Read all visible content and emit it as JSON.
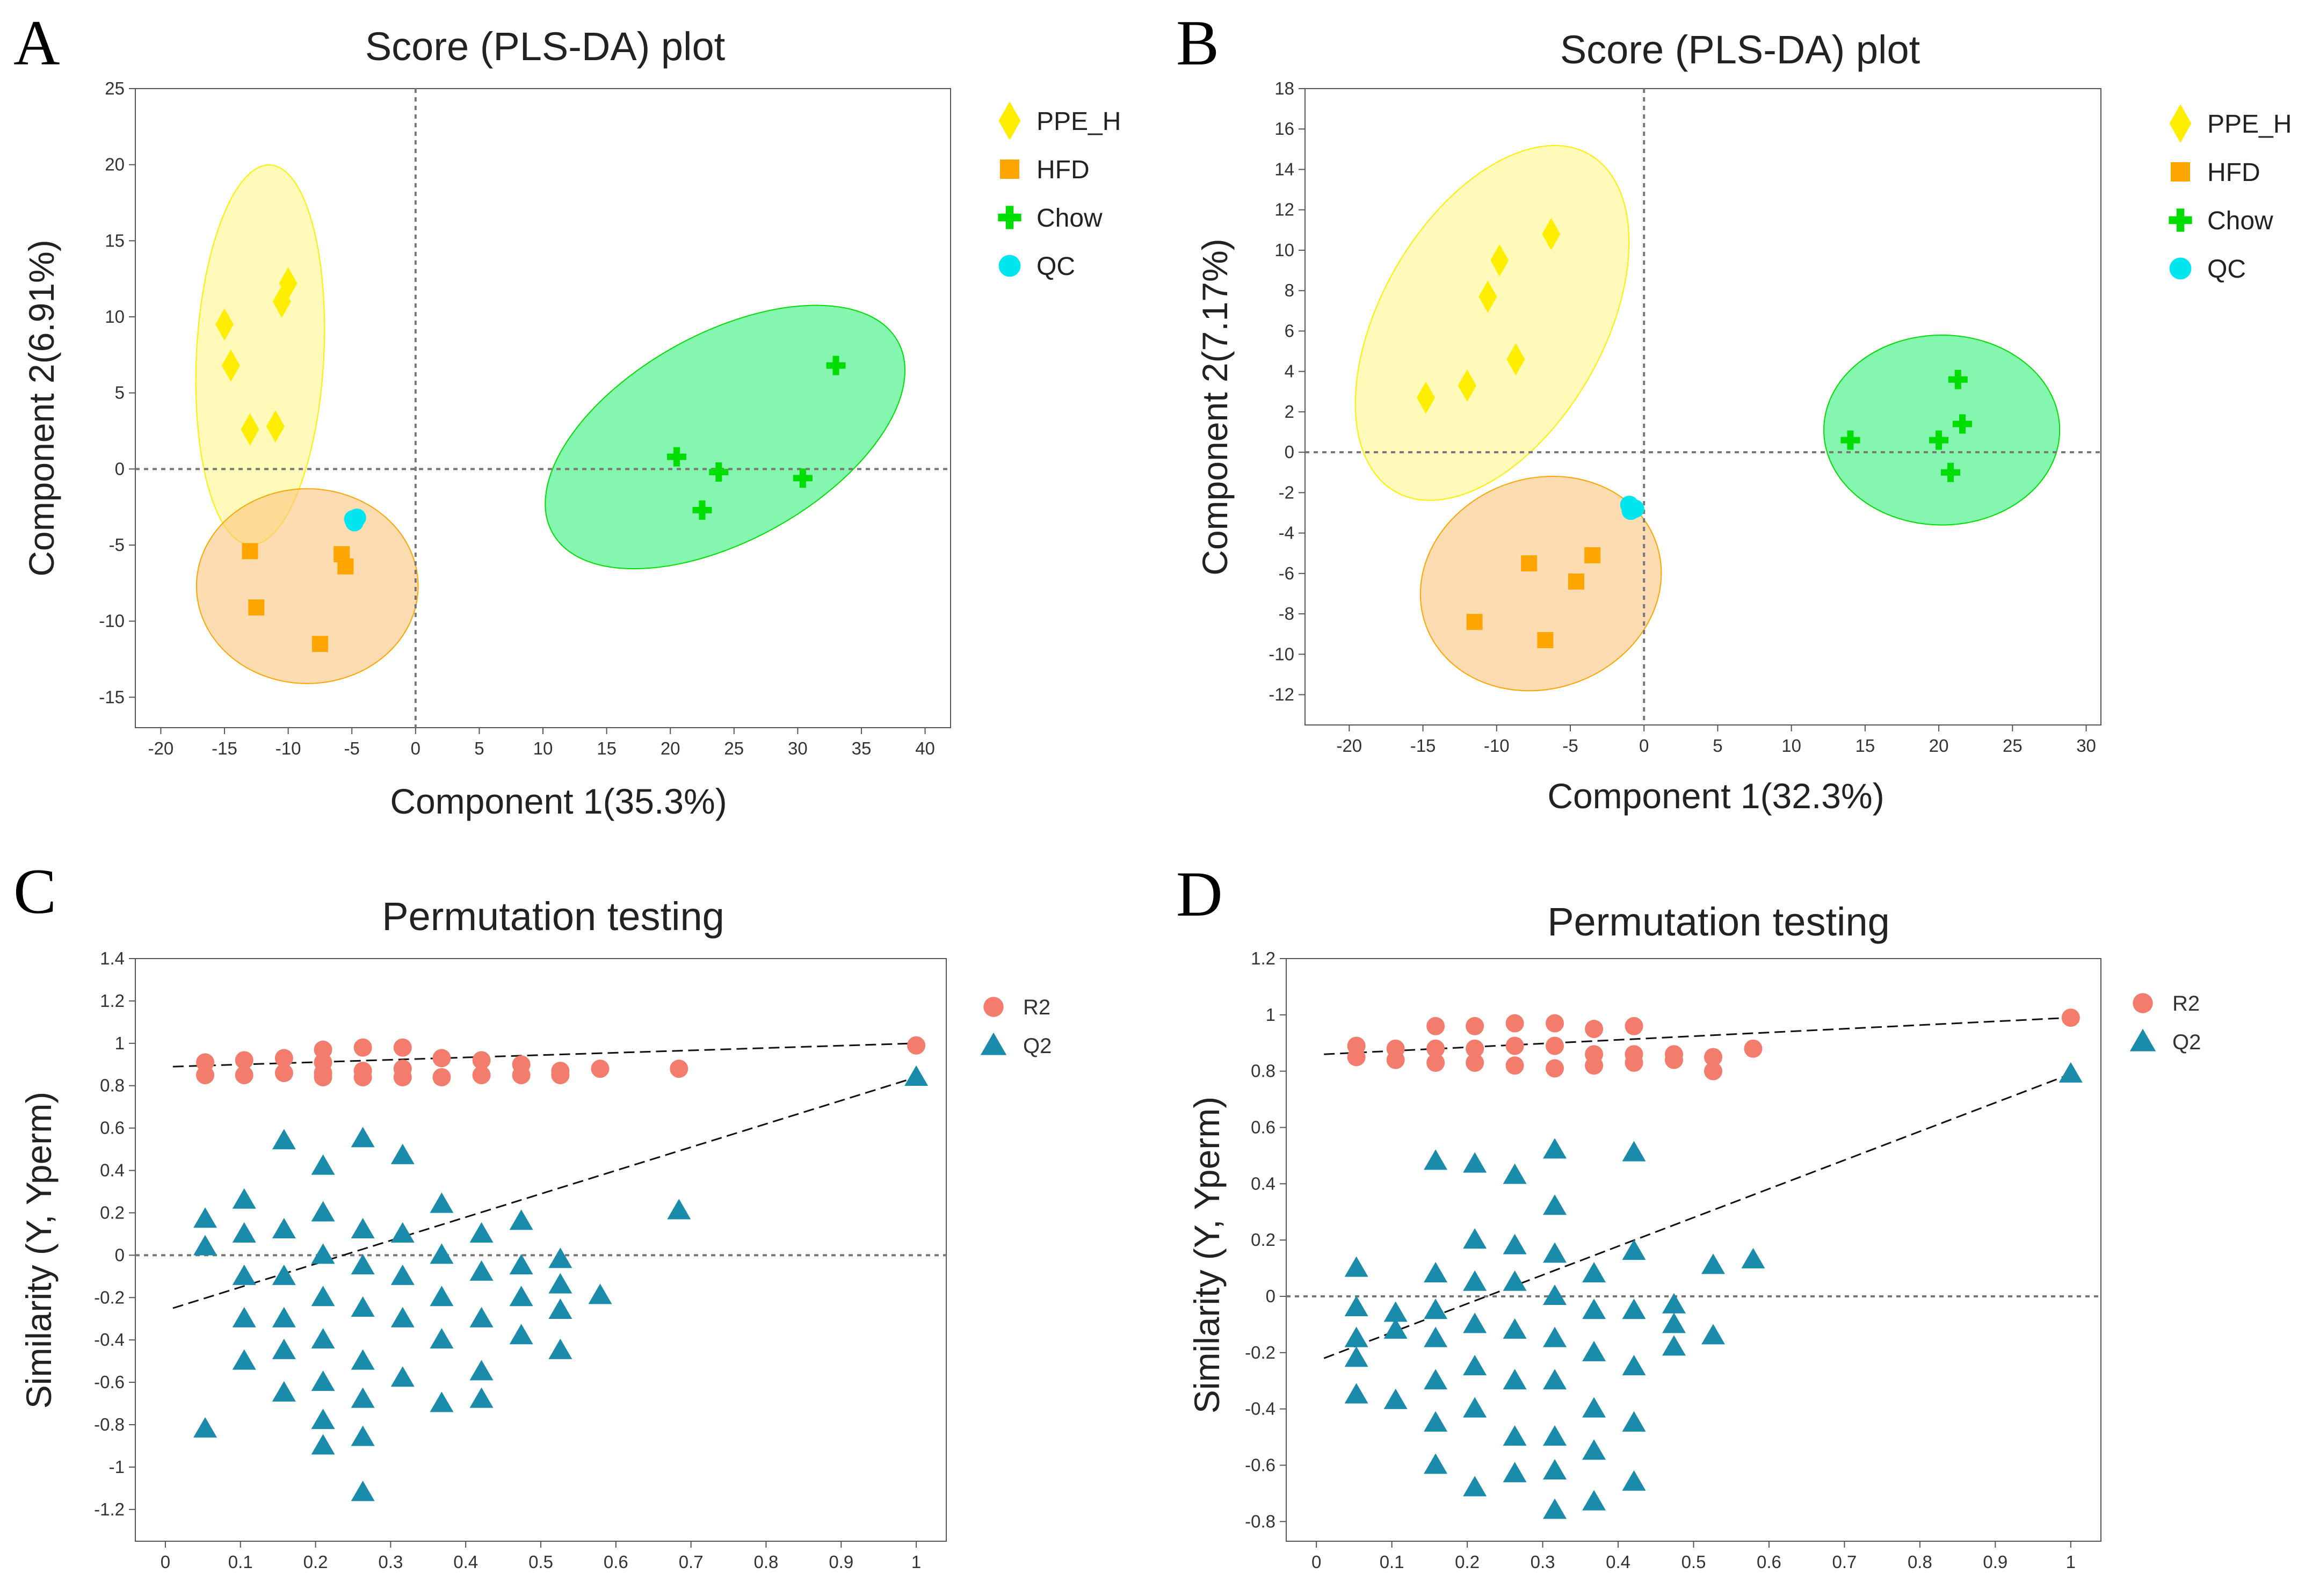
{
  "colors": {
    "ppe_h": "#ffee00",
    "hfd": "#ffa500",
    "chow": "#00dd00",
    "qc": "#00e5ee",
    "r2": "#f47c6c",
    "q2": "#1a8bab",
    "ellipse_yellow": "#fff78a",
    "ellipse_orange": "#fcc47e",
    "ellipse_green": "#33f07a"
  },
  "chart_data": [
    {
      "id": "A",
      "panel_letter": "A",
      "type": "scatter",
      "title": "Score (PLS-DA) plot",
      "xlabel": "Component 1(35.3%)",
      "ylabel": "Component 2(6.91%)",
      "xlim": [
        -22,
        42
      ],
      "ylim": [
        -17,
        25
      ],
      "xticks": [
        -20,
        -15,
        -10,
        -5,
        0,
        5,
        10,
        15,
        20,
        25,
        30,
        35,
        40
      ],
      "yticks": [
        -15,
        -10,
        -5,
        0,
        5,
        10,
        15,
        20,
        25
      ],
      "legend": {
        "placement": "outside-right-top",
        "entries": [
          "PPE_H",
          "HFD",
          "Chow",
          "QC"
        ]
      },
      "ellipses": [
        {
          "group": "PPE_H",
          "cx": -12.2,
          "cy": 7.5,
          "rx": 5.0,
          "ry": 12.5,
          "angle_deg": 3
        },
        {
          "group": "HFD",
          "cx": -8.5,
          "cy": -7.7,
          "rx": 8.7,
          "ry": 6.4,
          "angle_deg": 0
        },
        {
          "group": "Chow",
          "cx": 24.3,
          "cy": 2.1,
          "rx": 15.5,
          "ry": 6.8,
          "angle_deg": -29
        }
      ],
      "series": [
        {
          "name": "PPE_H",
          "marker": "diamond",
          "points": [
            [
              -15,
              9.5
            ],
            [
              -14.5,
              6.8
            ],
            [
              -13,
              2.6
            ],
            [
              -11,
              2.8
            ],
            [
              -10.5,
              11
            ],
            [
              -10,
              12.2
            ]
          ]
        },
        {
          "name": "HFD",
          "marker": "square",
          "points": [
            [
              -13,
              -5.4
            ],
            [
              -12.5,
              -9.1
            ],
            [
              -7.5,
              -11.5
            ],
            [
              -5.8,
              -5.6
            ],
            [
              -5.5,
              -6.4
            ]
          ]
        },
        {
          "name": "Chow",
          "marker": "cross",
          "points": [
            [
              20.5,
              0.8
            ],
            [
              22.5,
              -2.7
            ],
            [
              23.8,
              -0.2
            ],
            [
              30.4,
              -0.6
            ],
            [
              33,
              6.8
            ]
          ]
        },
        {
          "name": "QC",
          "marker": "circle",
          "points": [
            [
              -4.8,
              -3.5
            ],
            [
              -4.6,
              -3.2
            ],
            [
              -4.9,
              -3.3
            ]
          ]
        }
      ],
      "zero_lines": [
        "x",
        "y"
      ]
    },
    {
      "id": "B",
      "panel_letter": "B",
      "type": "scatter",
      "title": "Score (PLS-DA) plot",
      "xlabel": "Component 1(32.3%)",
      "ylabel": "Component 2(7.17%)",
      "xlim": [
        -23,
        31
      ],
      "ylim": [
        -13.5,
        18
      ],
      "xticks": [
        -20,
        -15,
        -10,
        -5,
        0,
        5,
        10,
        15,
        20,
        25,
        30
      ],
      "yticks": [
        -12,
        -10,
        -8,
        -6,
        -4,
        -2,
        0,
        2,
        4,
        6,
        8,
        10,
        12,
        14,
        16,
        18
      ],
      "legend": {
        "placement": "outside-right-top",
        "entries": [
          "PPE_H",
          "HFD",
          "Chow",
          "QC"
        ]
      },
      "ellipses": [
        {
          "group": "PPE_H",
          "cx": -10.3,
          "cy": 6.4,
          "rx": 13.2,
          "ry": 5.5,
          "angle_deg": -60
        },
        {
          "group": "HFD",
          "cx": -7.0,
          "cy": -6.5,
          "rx": 8.3,
          "ry": 5.2,
          "angle_deg": -20
        },
        {
          "group": "Chow",
          "cx": 20.2,
          "cy": 1.1,
          "rx": 8.0,
          "ry": 4.7,
          "angle_deg": 0
        }
      ],
      "series": [
        {
          "name": "PPE_H",
          "marker": "diamond",
          "points": [
            [
              -14.8,
              2.7
            ],
            [
              -12,
              3.3
            ],
            [
              -10.6,
              7.7
            ],
            [
              -9.8,
              9.5
            ],
            [
              -8.7,
              4.6
            ],
            [
              -6.3,
              10.8
            ]
          ]
        },
        {
          "name": "HFD",
          "marker": "square",
          "points": [
            [
              -11.5,
              -8.4
            ],
            [
              -7.8,
              -5.5
            ],
            [
              -6.7,
              -9.3
            ],
            [
              -4.6,
              -6.4
            ],
            [
              -3.5,
              -5.1
            ]
          ]
        },
        {
          "name": "Chow",
          "marker": "cross",
          "points": [
            [
              14,
              0.6
            ],
            [
              20,
              0.6
            ],
            [
              20.8,
              -1
            ],
            [
              21.3,
              3.6
            ],
            [
              21.6,
              1.4
            ]
          ]
        },
        {
          "name": "QC",
          "marker": "circle",
          "points": [
            [
              -1.0,
              -2.6
            ],
            [
              -0.6,
              -2.8
            ],
            [
              -0.9,
              -2.9
            ]
          ]
        }
      ],
      "zero_lines": [
        "x",
        "y"
      ]
    },
    {
      "id": "C",
      "panel_letter": "C",
      "type": "scatter",
      "title": "Permutation testing",
      "xlabel": "",
      "ylabel": "Similarity (Y, Yperm)",
      "xlim": [
        -0.04,
        1.04
      ],
      "ylim": [
        -1.35,
        1.4
      ],
      "xticks": [
        0,
        0.1,
        0.2,
        0.3,
        0.4,
        0.5,
        0.6,
        0.7,
        0.8,
        0.9,
        1
      ],
      "yticks": [
        -1.2,
        -1,
        -0.8,
        -0.6,
        -0.4,
        -0.2,
        0,
        0.2,
        0.4,
        0.6,
        0.8,
        1,
        1.2,
        1.4
      ],
      "legend": {
        "placement": "outside-right-top",
        "entries": [
          "R2",
          "Q2"
        ]
      },
      "trend_lines": [
        {
          "series": "R2",
          "from": [
            0.01,
            0.89
          ],
          "to": [
            1.0,
            1.0
          ]
        },
        {
          "series": "Q2",
          "from": [
            0.01,
            -0.25
          ],
          "to": [
            1.0,
            0.84
          ]
        }
      ],
      "zero_lines": [
        "y"
      ],
      "r2_points": [
        [
          0.053,
          0.91
        ],
        [
          0.053,
          0.85
        ],
        [
          0.105,
          0.92
        ],
        [
          0.105,
          0.85
        ],
        [
          0.158,
          0.93
        ],
        [
          0.158,
          0.86
        ],
        [
          0.21,
          0.97
        ],
        [
          0.21,
          0.91
        ],
        [
          0.21,
          0.86
        ],
        [
          0.21,
          0.84
        ],
        [
          0.263,
          0.98
        ],
        [
          0.263,
          0.87
        ],
        [
          0.263,
          0.84
        ],
        [
          0.316,
          0.98
        ],
        [
          0.316,
          0.88
        ],
        [
          0.316,
          0.84
        ],
        [
          0.368,
          0.93
        ],
        [
          0.368,
          0.84
        ],
        [
          0.421,
          0.92
        ],
        [
          0.421,
          0.85
        ],
        [
          0.474,
          0.9
        ],
        [
          0.474,
          0.85
        ],
        [
          0.526,
          0.87
        ],
        [
          0.526,
          0.85
        ],
        [
          0.579,
          0.88
        ],
        [
          0.684,
          0.88
        ],
        [
          1.0,
          0.99
        ]
      ],
      "q2_points": [
        [
          0.053,
          0.17
        ],
        [
          0.053,
          0.04
        ],
        [
          0.053,
          -0.82
        ],
        [
          0.105,
          0.26
        ],
        [
          0.105,
          0.1
        ],
        [
          0.105,
          -0.1
        ],
        [
          0.105,
          -0.3
        ],
        [
          0.105,
          -0.5
        ],
        [
          0.158,
          0.54
        ],
        [
          0.158,
          0.12
        ],
        [
          0.158,
          -0.1
        ],
        [
          0.158,
          -0.3
        ],
        [
          0.158,
          -0.45
        ],
        [
          0.158,
          -0.65
        ],
        [
          0.21,
          0.42
        ],
        [
          0.21,
          0.2
        ],
        [
          0.21,
          0.0
        ],
        [
          0.21,
          -0.2
        ],
        [
          0.21,
          -0.4
        ],
        [
          0.21,
          -0.6
        ],
        [
          0.21,
          -0.78
        ],
        [
          0.21,
          -0.9
        ],
        [
          0.263,
          0.55
        ],
        [
          0.263,
          0.12
        ],
        [
          0.263,
          -0.05
        ],
        [
          0.263,
          -0.25
        ],
        [
          0.263,
          -0.5
        ],
        [
          0.263,
          -0.68
        ],
        [
          0.263,
          -0.86
        ],
        [
          0.263,
          -1.12
        ],
        [
          0.316,
          0.47
        ],
        [
          0.316,
          0.1
        ],
        [
          0.316,
          -0.1
        ],
        [
          0.316,
          -0.3
        ],
        [
          0.316,
          -0.58
        ],
        [
          0.368,
          0.24
        ],
        [
          0.368,
          0.0
        ],
        [
          0.368,
          -0.2
        ],
        [
          0.368,
          -0.4
        ],
        [
          0.368,
          -0.7
        ],
        [
          0.421,
          0.1
        ],
        [
          0.421,
          -0.08
        ],
        [
          0.421,
          -0.3
        ],
        [
          0.421,
          -0.55
        ],
        [
          0.421,
          -0.68
        ],
        [
          0.474,
          0.16
        ],
        [
          0.474,
          -0.05
        ],
        [
          0.474,
          -0.2
        ],
        [
          0.474,
          -0.38
        ],
        [
          0.526,
          -0.02
        ],
        [
          0.526,
          -0.14
        ],
        [
          0.526,
          -0.26
        ],
        [
          0.526,
          -0.45
        ],
        [
          0.579,
          -0.19
        ],
        [
          0.684,
          0.21
        ],
        [
          1.0,
          0.84
        ]
      ]
    },
    {
      "id": "D",
      "panel_letter": "D",
      "type": "scatter",
      "title": "Permutation testing",
      "xlabel": "",
      "ylabel": "Similarity (Y, Yperm)",
      "xlim": [
        -0.04,
        1.04
      ],
      "ylim": [
        -0.87,
        1.2
      ],
      "xticks": [
        0,
        0.1,
        0.2,
        0.3,
        0.4,
        0.5,
        0.6,
        0.7,
        0.8,
        0.9,
        1
      ],
      "yticks": [
        -0.8,
        -0.6,
        -0.4,
        -0.2,
        0,
        0.2,
        0.4,
        0.6,
        0.8,
        1,
        1.2
      ],
      "legend": {
        "placement": "outside-right-top",
        "entries": [
          "R2",
          "Q2"
        ]
      },
      "trend_lines": [
        {
          "series": "R2",
          "from": [
            0.01,
            0.86
          ],
          "to": [
            1.0,
            0.99
          ]
        },
        {
          "series": "Q2",
          "from": [
            0.01,
            -0.22
          ],
          "to": [
            1.0,
            0.79
          ]
        }
      ],
      "zero_lines": [
        "y"
      ],
      "r2_points": [
        [
          0.053,
          0.89
        ],
        [
          0.053,
          0.85
        ],
        [
          0.105,
          0.88
        ],
        [
          0.105,
          0.84
        ],
        [
          0.158,
          0.96
        ],
        [
          0.158,
          0.88
        ],
        [
          0.158,
          0.83
        ],
        [
          0.21,
          0.96
        ],
        [
          0.21,
          0.88
        ],
        [
          0.21,
          0.83
        ],
        [
          0.263,
          0.97
        ],
        [
          0.263,
          0.89
        ],
        [
          0.263,
          0.82
        ],
        [
          0.316,
          0.97
        ],
        [
          0.316,
          0.89
        ],
        [
          0.316,
          0.81
        ],
        [
          0.368,
          0.95
        ],
        [
          0.368,
          0.86
        ],
        [
          0.368,
          0.82
        ],
        [
          0.421,
          0.96
        ],
        [
          0.421,
          0.86
        ],
        [
          0.421,
          0.83
        ],
        [
          0.474,
          0.86
        ],
        [
          0.474,
          0.84
        ],
        [
          0.526,
          0.85
        ],
        [
          0.526,
          0.8
        ],
        [
          0.579,
          0.88
        ],
        [
          1.0,
          0.99
        ]
      ],
      "q2_points": [
        [
          0.053,
          0.1
        ],
        [
          0.053,
          -0.04
        ],
        [
          0.053,
          -0.15
        ],
        [
          0.053,
          -0.22
        ],
        [
          0.053,
          -0.35
        ],
        [
          0.105,
          -0.06
        ],
        [
          0.105,
          -0.12
        ],
        [
          0.105,
          -0.37
        ],
        [
          0.158,
          0.48
        ],
        [
          0.158,
          0.08
        ],
        [
          0.158,
          -0.05
        ],
        [
          0.158,
          -0.15
        ],
        [
          0.158,
          -0.3
        ],
        [
          0.158,
          -0.45
        ],
        [
          0.158,
          -0.6
        ],
        [
          0.21,
          0.47
        ],
        [
          0.21,
          0.2
        ],
        [
          0.21,
          0.05
        ],
        [
          0.21,
          -0.1
        ],
        [
          0.21,
          -0.25
        ],
        [
          0.21,
          -0.4
        ],
        [
          0.21,
          -0.68
        ],
        [
          0.263,
          0.43
        ],
        [
          0.263,
          0.18
        ],
        [
          0.263,
          0.05
        ],
        [
          0.263,
          -0.12
        ],
        [
          0.263,
          -0.3
        ],
        [
          0.263,
          -0.5
        ],
        [
          0.263,
          -0.63
        ],
        [
          0.316,
          0.52
        ],
        [
          0.316,
          0.32
        ],
        [
          0.316,
          0.15
        ],
        [
          0.316,
          0.0
        ],
        [
          0.316,
          -0.15
        ],
        [
          0.316,
          -0.3
        ],
        [
          0.316,
          -0.5
        ],
        [
          0.316,
          -0.62
        ],
        [
          0.316,
          -0.76
        ],
        [
          0.368,
          0.08
        ],
        [
          0.368,
          -0.05
        ],
        [
          0.368,
          -0.2
        ],
        [
          0.368,
          -0.4
        ],
        [
          0.368,
          -0.55
        ],
        [
          0.368,
          -0.73
        ],
        [
          0.421,
          0.51
        ],
        [
          0.421,
          0.16
        ],
        [
          0.421,
          -0.05
        ],
        [
          0.421,
          -0.25
        ],
        [
          0.421,
          -0.45
        ],
        [
          0.421,
          -0.66
        ],
        [
          0.474,
          -0.03
        ],
        [
          0.474,
          -0.1
        ],
        [
          0.474,
          -0.18
        ],
        [
          0.526,
          0.11
        ],
        [
          0.526,
          -0.14
        ],
        [
          0.579,
          0.13
        ],
        [
          1.0,
          0.79
        ]
      ]
    }
  ]
}
